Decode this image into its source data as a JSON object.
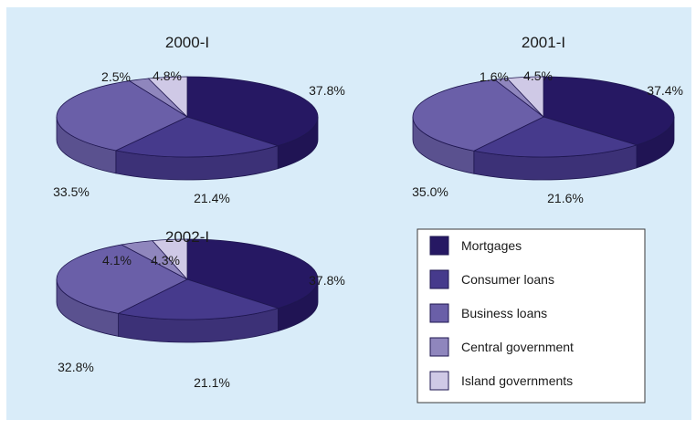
{
  "chart_data": [
    {
      "type": "pie",
      "title": "2000-I",
      "categories": [
        "Mortgages",
        "Consumer loans",
        "Business loans",
        "Central government",
        "Island governments"
      ],
      "values": [
        37.8,
        21.4,
        33.5,
        2.5,
        4.8
      ],
      "labels": [
        "37.8%",
        "21.4%",
        "33.5%",
        "2.5%",
        "4.8%"
      ]
    },
    {
      "type": "pie",
      "title": "2001-I",
      "categories": [
        "Mortgages",
        "Consumer loans",
        "Business loans",
        "Central government",
        "Island governments"
      ],
      "values": [
        37.4,
        21.6,
        35.0,
        1.6,
        4.5
      ],
      "labels": [
        "37.4%",
        "21.6%",
        "35.0%",
        "1.6%",
        "4.5%"
      ]
    },
    {
      "type": "pie",
      "title": "2002-I",
      "categories": [
        "Mortgages",
        "Consumer loans",
        "Business loans",
        "Central government",
        "Island governments"
      ],
      "values": [
        37.8,
        21.1,
        32.8,
        4.1,
        4.3
      ],
      "labels": [
        "37.8%",
        "21.1%",
        "32.8%",
        "4.1%",
        "4.3%"
      ]
    }
  ],
  "legend": {
    "placement": "bottom-right",
    "items": [
      {
        "label": "Mortgages",
        "color": "#261863"
      },
      {
        "label": "Consumer loans",
        "color": "#463a8c"
      },
      {
        "label": "Business loans",
        "color": "#6a5fa8"
      },
      {
        "label": "Central government",
        "color": "#8f86bd"
      },
      {
        "label": "Island governments",
        "color": "#cfc9e6"
      }
    ]
  }
}
